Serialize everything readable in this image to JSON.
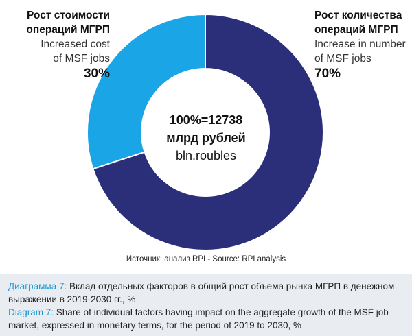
{
  "chart_data": {
    "type": "pie",
    "donut": true,
    "slices": [
      {
        "label_ru": "Рост количества операций МГРП",
        "label_en": "Increase in number of MSF jobs",
        "value": 70,
        "value_label": "70%",
        "color": "#2b2f7a"
      },
      {
        "label_ru": "Рост стоимости операций МГРП",
        "label_en": "Increased cost of MSF jobs",
        "value": 30,
        "value_label": "30%",
        "color": "#1aa6e6"
      }
    ],
    "center": {
      "line1": "100%=12738",
      "line2": "млрд рублей",
      "line3": "bln.roubles"
    }
  },
  "labels": {
    "left": {
      "ru_line1": "Рост стоимости",
      "ru_line2": "операций МГРП",
      "en_line1": "Increased cost",
      "en_line2": "of MSF jobs",
      "pct": "30%"
    },
    "right": {
      "ru_line1": "Рост количества",
      "ru_line2": "операций МГРП",
      "en_line1": "Increase in number",
      "en_line2": "of MSF jobs",
      "pct": "70%"
    }
  },
  "source": "Источник: анализ RPI - Source: RPI analysis",
  "caption": {
    "ru_tag": "Диаграмма 7:",
    "ru_text": " Вклад отдельных факторов в общий рост объема рынка МГРП в денежном",
    "ru_text2": "выражении в 2019-2030 гг., %",
    "en_tag": "Diagram 7:",
    "en_text": " Share of individual factors having impact on the aggregate growth of the MSF job",
    "en_text2": "market, expressed in monetary terms, for the period of 2019 to 2030, %"
  }
}
